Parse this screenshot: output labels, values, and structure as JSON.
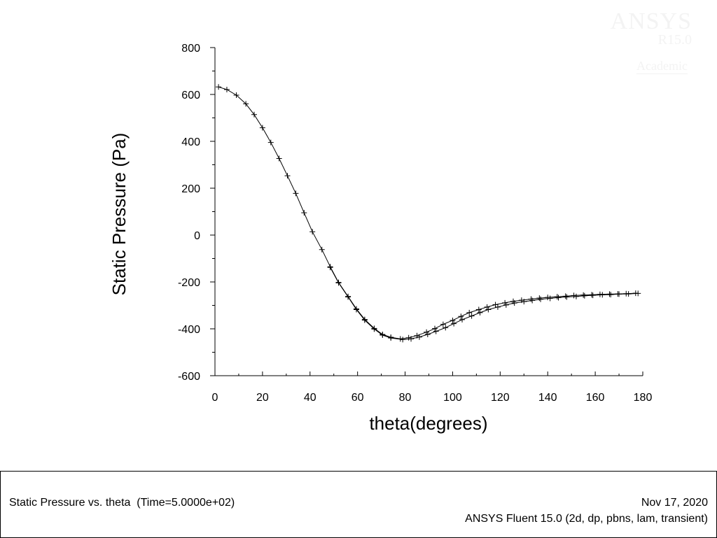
{
  "watermark": {
    "title": "ANSYS",
    "version": "R15.0",
    "license": "Academic"
  },
  "chart_data": {
    "type": "line",
    "title": "",
    "xlabel": "theta(degrees)",
    "ylabel": "Static Pressure (Pa)",
    "xlim": [
      0,
      180
    ],
    "ylim": [
      -600,
      800
    ],
    "xticks": [
      0,
      20,
      40,
      60,
      80,
      100,
      120,
      140,
      160,
      180
    ],
    "yticks": [
      -600,
      -400,
      -200,
      0,
      200,
      400,
      600,
      800
    ],
    "grid": false,
    "series": [
      {
        "marker": "+",
        "x": [
          1.5,
          5,
          9,
          13,
          16.5,
          20,
          23.5,
          27,
          30.5,
          34,
          37.5,
          41,
          45,
          48.5,
          52,
          56,
          59.5,
          63,
          67,
          70.5,
          74,
          78,
          81.5,
          85,
          89,
          92.5,
          96,
          100,
          103.5,
          107,
          111,
          114.5,
          118,
          122,
          125.5,
          129,
          133,
          136.5,
          140,
          144,
          147.5,
          151,
          155,
          158.5,
          162,
          166,
          169.5,
          173,
          177
        ],
        "y": [
          632,
          621,
          597,
          560,
          514,
          458,
          395,
          327,
          253,
          178,
          95,
          14,
          -62,
          -135,
          -202,
          -262,
          -315,
          -360,
          -398,
          -424,
          -436,
          -443,
          -438,
          -429,
          -414,
          -399,
          -381,
          -364,
          -347,
          -331,
          -318,
          -307,
          -297,
          -289,
          -283,
          -278,
          -273,
          -269,
          -266,
          -263,
          -261,
          -258,
          -256,
          -255,
          -253,
          -252,
          -251,
          -250,
          -248
        ]
      },
      {
        "marker": "+",
        "x": [
          48.5,
          52,
          56,
          59.5,
          63,
          67,
          70.5,
          74,
          79,
          82.5,
          86,
          89.5,
          93,
          97,
          100.5,
          104,
          108,
          111.5,
          115,
          119,
          122.5,
          126,
          130,
          133.5,
          137,
          141,
          144.5,
          148,
          152,
          155.5,
          159,
          163,
          166.5,
          170,
          174,
          178
        ],
        "y": [
          -138,
          -204,
          -264,
          -318,
          -363,
          -401,
          -427,
          -439,
          -446,
          -443,
          -435,
          -424,
          -411,
          -395,
          -378,
          -361,
          -345,
          -331,
          -318,
          -307,
          -298,
          -290,
          -284,
          -279,
          -274,
          -270,
          -267,
          -264,
          -262,
          -259,
          -257,
          -255,
          -254,
          -252,
          -251,
          -249
        ]
      }
    ]
  },
  "footer": {
    "description": "Static Pressure vs. theta  (Time=5.0000e+02)",
    "date": "Nov 17, 2020",
    "product": "ANSYS Fluent 15.0 (2d, dp, pbns, lam, transient)"
  }
}
